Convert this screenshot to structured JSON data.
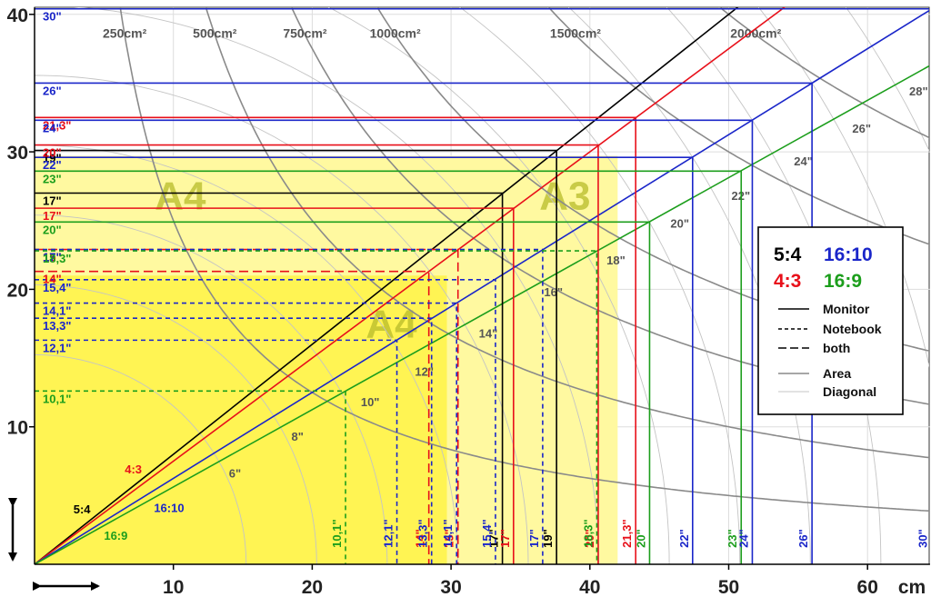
{
  "chart_data": {
    "type": "line",
    "xlabel": "cm",
    "ylabel": "",
    "xlim": [
      0,
      64.5
    ],
    "ylim": [
      0,
      40.5
    ],
    "x_ticks": [
      10,
      20,
      30,
      40,
      50,
      60
    ],
    "y_ticks": [
      10,
      20,
      30,
      40
    ],
    "grid": true,
    "legend_position": "right",
    "colors": {
      "5:4": "#000000",
      "4:3": "#e8101a",
      "16:10": "#1a26c9",
      "16:9": "#1c9e1c"
    },
    "ratio_labels": [
      "5:4",
      "4:3",
      "16:10",
      "16:9"
    ],
    "legend": {
      "ratios": [
        "5:4",
        "16:10",
        "4:3",
        "16:9"
      ],
      "styles": [
        "Monitor",
        "Notebook",
        "both",
        "Area",
        "Diagonal"
      ]
    },
    "paper_sizes": [
      {
        "label": "A4",
        "w": 21.0,
        "h": 29.7
      },
      {
        "label": "A3",
        "w": 42.0,
        "h": 29.7
      },
      {
        "label": "A4",
        "w": 29.7,
        "h": 21.0
      }
    ],
    "series": [
      {
        "name": "5:4",
        "items": [
          {
            "label": "17\"",
            "w": 33.7,
            "h": 27.0,
            "kind": "Monitor"
          },
          {
            "label": "19\"",
            "w": 37.6,
            "h": 30.1,
            "kind": "Monitor"
          }
        ]
      },
      {
        "name": "4:3",
        "items": [
          {
            "label": "14\"",
            "w": 28.4,
            "h": 21.3,
            "kind": "both"
          },
          {
            "label": "15\"",
            "w": 30.5,
            "h": 22.9,
            "kind": "both"
          },
          {
            "label": "17\"",
            "w": 34.5,
            "h": 25.9,
            "kind": "Monitor"
          },
          {
            "label": "20\"",
            "w": 40.6,
            "h": 30.5,
            "kind": "Monitor"
          },
          {
            "label": "21,3\"",
            "w": 43.3,
            "h": 32.5,
            "kind": "Monitor"
          }
        ]
      },
      {
        "name": "16:10",
        "items": [
          {
            "label": "12,1\"",
            "w": 26.1,
            "h": 16.3,
            "kind": "Notebook"
          },
          {
            "label": "13,3\"",
            "w": 28.6,
            "h": 17.9,
            "kind": "Notebook"
          },
          {
            "label": "14,1\"",
            "w": 30.4,
            "h": 19.0,
            "kind": "Notebook"
          },
          {
            "label": "15,4\"",
            "w": 33.2,
            "h": 20.7,
            "kind": "Notebook"
          },
          {
            "label": "17\"",
            "w": 36.6,
            "h": 22.9,
            "kind": "Notebook"
          },
          {
            "label": "22\"",
            "w": 47.4,
            "h": 29.6,
            "kind": "Monitor"
          },
          {
            "label": "24\"",
            "w": 51.7,
            "h": 32.3,
            "kind": "Monitor"
          },
          {
            "label": "26\"",
            "w": 56.0,
            "h": 35.0,
            "kind": "Monitor"
          },
          {
            "label": "30\"",
            "w": 64.6,
            "h": 40.4,
            "kind": "Monitor"
          }
        ]
      },
      {
        "name": "16:9",
        "items": [
          {
            "label": "10,1\"",
            "w": 22.4,
            "h": 12.6,
            "kind": "Notebook"
          },
          {
            "label": "18,3\"",
            "w": 40.5,
            "h": 22.8,
            "kind": "Notebook"
          },
          {
            "label": "20\"",
            "w": 44.3,
            "h": 24.9,
            "kind": "Monitor"
          },
          {
            "label": "23\"",
            "w": 50.9,
            "h": 28.6,
            "kind": "Monitor"
          }
        ]
      }
    ],
    "area_curves": [
      {
        "label": "250cm²",
        "value": 250
      },
      {
        "label": "500cm²",
        "value": 500
      },
      {
        "label": "750cm²",
        "value": 750
      },
      {
        "label": "1000cm²",
        "value": 1000
      },
      {
        "label": "1500cm²",
        "value": 1500
      },
      {
        "label": "2000cm²",
        "value": 2000
      }
    ],
    "diagonal_arcs": [
      {
        "label": "6\"",
        "inch": 6
      },
      {
        "label": "8\"",
        "inch": 8
      },
      {
        "label": "10\"",
        "inch": 10
      },
      {
        "label": "12\"",
        "inch": 12
      },
      {
        "label": "14\"",
        "inch": 14
      },
      {
        "label": "16\"",
        "inch": 16
      },
      {
        "label": "18\"",
        "inch": 18
      },
      {
        "label": "20\"",
        "inch": 20
      },
      {
        "label": "22\"",
        "inch": 22
      },
      {
        "label": "24\"",
        "inch": 24
      },
      {
        "label": "26\"",
        "inch": 26
      },
      {
        "label": "28\"",
        "inch": 28
      }
    ]
  }
}
